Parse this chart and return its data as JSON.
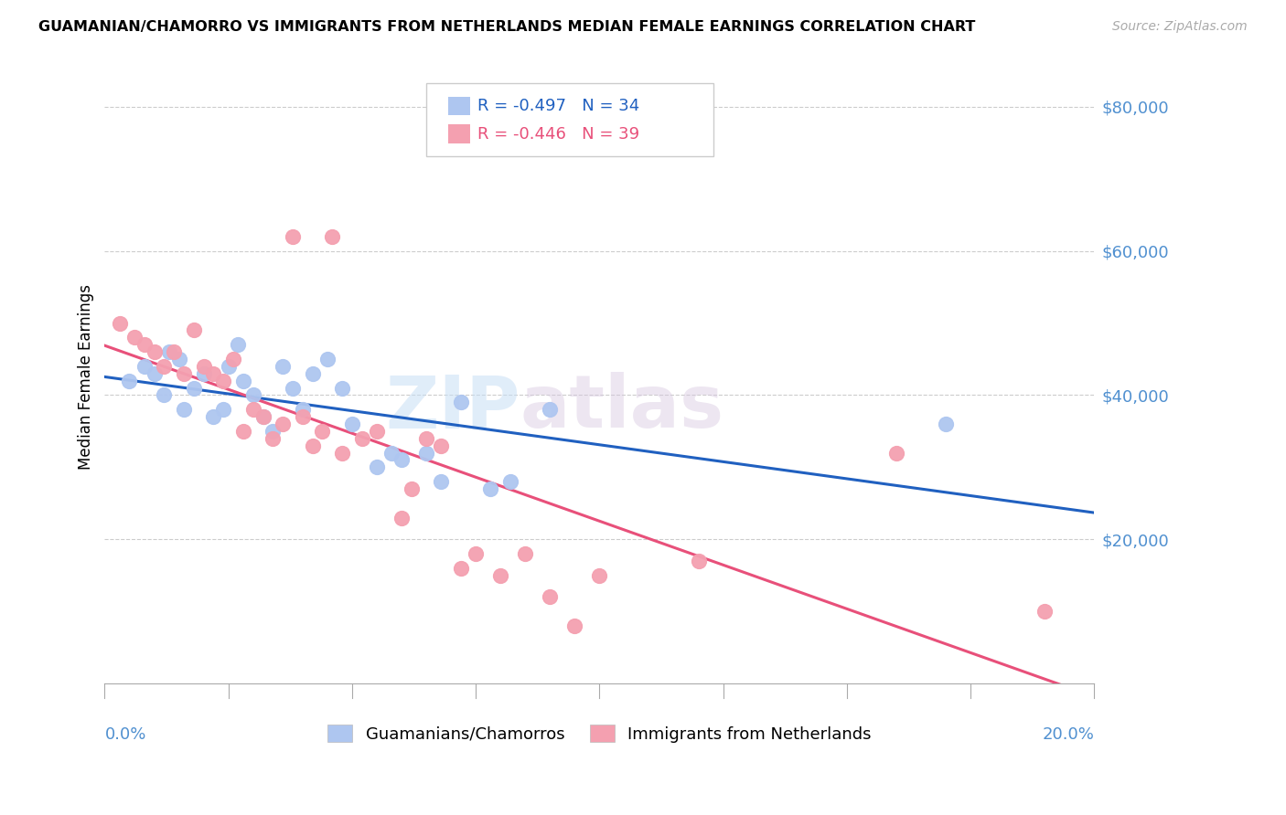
{
  "title": "GUAMANIAN/CHAMORRO VS IMMIGRANTS FROM NETHERLANDS MEDIAN FEMALE EARNINGS CORRELATION CHART",
  "source": "Source: ZipAtlas.com",
  "ylabel": "Median Female Earnings",
  "xmin": 0.0,
  "xmax": 0.2,
  "ymin": 0,
  "ymax": 85000,
  "blue_R": -0.497,
  "blue_N": 34,
  "pink_R": -0.446,
  "pink_N": 39,
  "blue_color": "#aec6f0",
  "pink_color": "#f4a0b0",
  "blue_line_color": "#2060c0",
  "pink_line_color": "#e8507a",
  "legend_label_blue": "Guamanians/Chamorros",
  "legend_label_pink": "Immigrants from Netherlands",
  "watermark_zip": "ZIP",
  "watermark_atlas": "atlas",
  "blue_scatter_x": [
    0.005,
    0.008,
    0.01,
    0.012,
    0.013,
    0.015,
    0.016,
    0.018,
    0.02,
    0.022,
    0.024,
    0.025,
    0.027,
    0.028,
    0.03,
    0.032,
    0.034,
    0.036,
    0.038,
    0.04,
    0.042,
    0.045,
    0.048,
    0.05,
    0.055,
    0.058,
    0.06,
    0.065,
    0.068,
    0.072,
    0.078,
    0.082,
    0.09,
    0.17
  ],
  "blue_scatter_y": [
    42000,
    44000,
    43000,
    40000,
    46000,
    45000,
    38000,
    41000,
    43000,
    37000,
    38000,
    44000,
    47000,
    42000,
    40000,
    37000,
    35000,
    44000,
    41000,
    38000,
    43000,
    45000,
    41000,
    36000,
    30000,
    32000,
    31000,
    32000,
    28000,
    39000,
    27000,
    28000,
    38000,
    36000
  ],
  "pink_scatter_x": [
    0.003,
    0.006,
    0.008,
    0.01,
    0.012,
    0.014,
    0.016,
    0.018,
    0.02,
    0.022,
    0.024,
    0.026,
    0.028,
    0.03,
    0.032,
    0.034,
    0.036,
    0.038,
    0.04,
    0.042,
    0.044,
    0.046,
    0.048,
    0.052,
    0.055,
    0.06,
    0.062,
    0.065,
    0.068,
    0.072,
    0.075,
    0.08,
    0.085,
    0.09,
    0.095,
    0.1,
    0.12,
    0.16,
    0.19
  ],
  "pink_scatter_y": [
    50000,
    48000,
    47000,
    46000,
    44000,
    46000,
    43000,
    49000,
    44000,
    43000,
    42000,
    45000,
    35000,
    38000,
    37000,
    34000,
    36000,
    62000,
    37000,
    33000,
    35000,
    62000,
    32000,
    34000,
    35000,
    23000,
    27000,
    34000,
    33000,
    16000,
    18000,
    15000,
    18000,
    12000,
    8000,
    15000,
    17000,
    32000,
    10000
  ],
  "background_color": "#ffffff",
  "grid_color": "#cccccc",
  "ytick_vals": [
    20000,
    40000,
    60000,
    80000
  ],
  "ytick_labels": [
    "$20,000",
    "$40,000",
    "$60,000",
    "$80,000"
  ],
  "xtick_positions": [
    0.0,
    0.025,
    0.05,
    0.075,
    0.1,
    0.125,
    0.15,
    0.175,
    0.2
  ]
}
